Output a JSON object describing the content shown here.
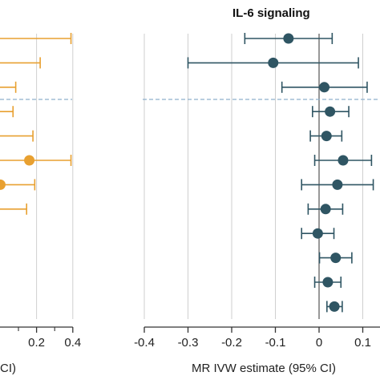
{
  "chart_data": [
    {
      "type": "scatter",
      "subtype": "forest-plot",
      "title": "",
      "xlabel_visible": "CI)",
      "xlim": [
        0.0,
        0.4
      ],
      "x_ticks_shown": [
        "0.2",
        "0.4"
      ],
      "x_ticks": [
        0.2,
        0.4
      ],
      "grid": "vertical",
      "color": "#e8a030",
      "reference_line": {
        "type": "horizontal-dashed",
        "color": "#8fb0cc",
        "after_row": 2
      },
      "rows": [
        {
          "estimate": null,
          "ci_low": null,
          "ci_high": 0.39
        },
        {
          "estimate": null,
          "ci_low": null,
          "ci_high": 0.22
        },
        {
          "estimate": null,
          "ci_low": null,
          "ci_high": 0.085
        },
        {
          "estimate": null,
          "ci_low": null,
          "ci_high": 0.07
        },
        {
          "estimate": null,
          "ci_low": null,
          "ci_high": 0.18
        },
        {
          "estimate": 0.16,
          "ci_low": null,
          "ci_high": 0.39
        },
        {
          "estimate": 0.0,
          "ci_low": null,
          "ci_high": 0.19
        },
        {
          "estimate": null,
          "ci_low": null,
          "ci_high": 0.145
        },
        {
          "estimate": null,
          "ci_low": null,
          "ci_high": null
        },
        {
          "estimate": null,
          "ci_low": null,
          "ci_high": null
        },
        {
          "estimate": null,
          "ci_low": null,
          "ci_high": null
        }
      ]
    },
    {
      "type": "scatter",
      "subtype": "forest-plot",
      "title": "IL-6 signaling",
      "xlabel": "MR IVW estimate (95% CI)",
      "xlim": [
        -0.4,
        0.12
      ],
      "x_ticks_shown": [
        "-0.4",
        "-0.3",
        "-0.2",
        "-0.1",
        "0",
        "0.1"
      ],
      "x_ticks": [
        -0.4,
        -0.3,
        -0.2,
        -0.1,
        0,
        0.1
      ],
      "grid": "vertical",
      "zero_line": true,
      "color": "#2f5563",
      "reference_line": {
        "type": "horizontal-dashed",
        "color": "#8fb0cc",
        "after_row": 2
      },
      "rows": [
        {
          "estimate": -0.07,
          "ci_low": -0.17,
          "ci_high": 0.03
        },
        {
          "estimate": -0.105,
          "ci_low": -0.3,
          "ci_high": 0.09
        },
        {
          "estimate": 0.012,
          "ci_low": -0.085,
          "ci_high": 0.11
        },
        {
          "estimate": 0.025,
          "ci_low": -0.015,
          "ci_high": 0.068
        },
        {
          "estimate": 0.017,
          "ci_low": -0.02,
          "ci_high": 0.052
        },
        {
          "estimate": 0.055,
          "ci_low": -0.01,
          "ci_high": 0.12
        },
        {
          "estimate": 0.042,
          "ci_low": -0.04,
          "ci_high": 0.124
        },
        {
          "estimate": 0.015,
          "ci_low": -0.025,
          "ci_high": 0.054
        },
        {
          "estimate": -0.003,
          "ci_low": -0.04,
          "ci_high": 0.034
        },
        {
          "estimate": 0.038,
          "ci_low": 0.001,
          "ci_high": 0.075
        },
        {
          "estimate": 0.02,
          "ci_low": -0.01,
          "ci_high": 0.05
        },
        {
          "estimate": 0.035,
          "ci_low": 0.018,
          "ci_high": 0.053
        }
      ]
    }
  ]
}
